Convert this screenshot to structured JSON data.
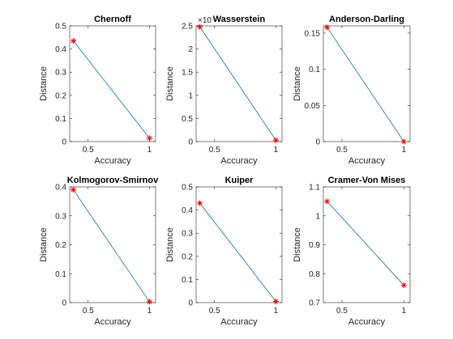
{
  "chart_data": [
    {
      "type": "line",
      "title": "Chernoff",
      "xlabel": "Accuracy",
      "ylabel": "Distance",
      "xlim": [
        0.35,
        1.05
      ],
      "ylim": [
        0,
        0.5
      ],
      "xticks": [
        {
          "v": 0.5,
          "label": "0.5"
        },
        {
          "v": 1,
          "label": "1"
        }
      ],
      "yticks": [
        {
          "v": 0,
          "label": "0"
        },
        {
          "v": 0.1,
          "label": "0.1"
        },
        {
          "v": 0.2,
          "label": "0.2"
        },
        {
          "v": 0.3,
          "label": "0.3"
        },
        {
          "v": 0.4,
          "label": "0.4"
        },
        {
          "v": 0.5,
          "label": "0.5"
        }
      ],
      "exponent_label": "",
      "x": [
        0.38,
        1
      ],
      "y": [
        0.435,
        0.015
      ],
      "line_color": "#0072BD",
      "marker_color": "#ff0000"
    },
    {
      "type": "line",
      "title": "Wasserstein",
      "xlabel": "Accuracy",
      "ylabel": "Distance",
      "xlim": [
        0.35,
        1.05
      ],
      "ylim": [
        0,
        2.5
      ],
      "xticks": [
        {
          "v": 0.5,
          "label": "0.5"
        },
        {
          "v": 1,
          "label": "1"
        }
      ],
      "yticks": [
        {
          "v": 0,
          "label": "0"
        },
        {
          "v": 0.5,
          "label": "0.5"
        },
        {
          "v": 1,
          "label": "1"
        },
        {
          "v": 1.5,
          "label": "1.5"
        },
        {
          "v": 2,
          "label": "2"
        },
        {
          "v": 2.5,
          "label": "2.5"
        }
      ],
      "exponent_label": "×10",
      "x": [
        0.38,
        1
      ],
      "y": [
        2.48,
        0.03
      ],
      "line_color": "#0072BD",
      "marker_color": "#ff0000"
    },
    {
      "type": "line",
      "title": "Anderson-Darling",
      "xlabel": "Accuracy",
      "ylabel": "Distance",
      "xlim": [
        0.35,
        1.05
      ],
      "ylim": [
        0,
        0.16
      ],
      "xticks": [
        {
          "v": 0.5,
          "label": "0.5"
        },
        {
          "v": 1,
          "label": "1"
        }
      ],
      "yticks": [
        {
          "v": 0,
          "label": "0"
        },
        {
          "v": 0.05,
          "label": "0.05"
        },
        {
          "v": 0.1,
          "label": "0.1"
        },
        {
          "v": 0.15,
          "label": "0.15"
        }
      ],
      "exponent_label": "",
      "x": [
        0.38,
        1
      ],
      "y": [
        0.158,
        0.0
      ],
      "line_color": "#0072BD",
      "marker_color": "#ff0000"
    },
    {
      "type": "line",
      "title": "Kolmogorov-Smirnov",
      "xlabel": "Accuracy",
      "ylabel": "Distance",
      "xlim": [
        0.35,
        1.05
      ],
      "ylim": [
        0,
        0.4
      ],
      "xticks": [
        {
          "v": 0.5,
          "label": "0.5"
        },
        {
          "v": 1,
          "label": "1"
        }
      ],
      "yticks": [
        {
          "v": 0,
          "label": "0"
        },
        {
          "v": 0.1,
          "label": "0.1"
        },
        {
          "v": 0.2,
          "label": "0.2"
        },
        {
          "v": 0.3,
          "label": "0.3"
        },
        {
          "v": 0.4,
          "label": "0.4"
        }
      ],
      "exponent_label": "",
      "x": [
        0.38,
        1
      ],
      "y": [
        0.39,
        0.003
      ],
      "line_color": "#0072BD",
      "marker_color": "#ff0000"
    },
    {
      "type": "line",
      "title": "Kuiper",
      "xlabel": "Accuracy",
      "ylabel": "Distance",
      "xlim": [
        0.35,
        1.05
      ],
      "ylim": [
        0,
        0.5
      ],
      "xticks": [
        {
          "v": 0.5,
          "label": "0.5"
        },
        {
          "v": 1,
          "label": "1"
        }
      ],
      "yticks": [
        {
          "v": 0,
          "label": "0"
        },
        {
          "v": 0.1,
          "label": "0.1"
        },
        {
          "v": 0.2,
          "label": "0.2"
        },
        {
          "v": 0.3,
          "label": "0.3"
        },
        {
          "v": 0.4,
          "label": "0.4"
        },
        {
          "v": 0.5,
          "label": "0.5"
        }
      ],
      "exponent_label": "",
      "x": [
        0.38,
        1
      ],
      "y": [
        0.43,
        0.005
      ],
      "line_color": "#0072BD",
      "marker_color": "#ff0000"
    },
    {
      "type": "line",
      "title": "Cramer-Von Mises",
      "xlabel": "Accuracy",
      "ylabel": "Distance",
      "xlim": [
        0.35,
        1.05
      ],
      "ylim": [
        0.7,
        1.1
      ],
      "xticks": [
        {
          "v": 0.5,
          "label": "0.5"
        },
        {
          "v": 1,
          "label": "1"
        }
      ],
      "yticks": [
        {
          "v": 0.7,
          "label": "0.7"
        },
        {
          "v": 0.8,
          "label": "0.8"
        },
        {
          "v": 0.9,
          "label": "0.9"
        },
        {
          "v": 1,
          "label": "1"
        },
        {
          "v": 1.1,
          "label": "1.1"
        }
      ],
      "exponent_label": "",
      "x": [
        0.38,
        1
      ],
      "y": [
        1.05,
        0.76
      ],
      "line_color": "#0072BD",
      "marker_color": "#ff0000"
    }
  ]
}
